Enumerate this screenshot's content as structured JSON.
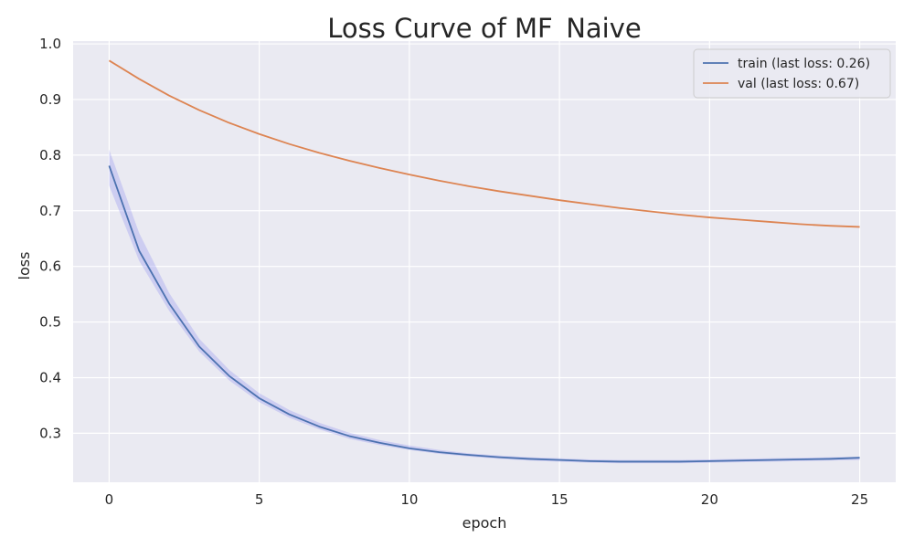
{
  "chart_data": {
    "type": "line",
    "title": "Loss Curve of MF_Naive",
    "xlabel": "epoch",
    "ylabel": "loss",
    "xlim": [
      -1.2,
      26.2
    ],
    "ylim": [
      0.212,
      1.005
    ],
    "xticks": [
      0,
      5,
      10,
      15,
      20,
      25
    ],
    "yticks": [
      0.3,
      0.4,
      0.5,
      0.6,
      0.7,
      0.8,
      0.9,
      1.0
    ],
    "ytick_labels": [
      "0.3",
      "0.4",
      "0.5",
      "0.6",
      "0.7",
      "0.8",
      "0.9",
      "1.0"
    ],
    "grid": true,
    "legend_position": "top-right",
    "background": "#eaeaf2",
    "x": [
      0,
      1,
      2,
      3,
      4,
      5,
      6,
      7,
      8,
      9,
      10,
      11,
      12,
      13,
      14,
      15,
      16,
      17,
      18,
      19,
      20,
      21,
      22,
      23,
      24,
      25
    ],
    "series": [
      {
        "name": "train (last loss: 0.26)",
        "color": "#4c72b0",
        "values": [
          0.781,
          0.628,
          0.533,
          0.456,
          0.403,
          0.363,
          0.334,
          0.312,
          0.295,
          0.283,
          0.273,
          0.266,
          0.261,
          0.257,
          0.254,
          0.252,
          0.25,
          0.249,
          0.249,
          0.249,
          0.25,
          0.251,
          0.252,
          0.253,
          0.254,
          0.256
        ],
        "band_lower": [
          0.745,
          0.61,
          0.52,
          0.447,
          0.395,
          0.356,
          0.328,
          0.307,
          0.29,
          0.279,
          0.27,
          0.263,
          0.258,
          0.254,
          0.251,
          0.249,
          0.247,
          0.246,
          0.246,
          0.246,
          0.247,
          0.248,
          0.249,
          0.25,
          0.251,
          0.252
        ],
        "band_upper": [
          0.81,
          0.66,
          0.552,
          0.47,
          0.414,
          0.372,
          0.342,
          0.319,
          0.301,
          0.288,
          0.278,
          0.27,
          0.264,
          0.26,
          0.257,
          0.255,
          0.253,
          0.252,
          0.252,
          0.252,
          0.253,
          0.254,
          0.255,
          0.256,
          0.257,
          0.258
        ],
        "band_color": "#8c8cf0"
      },
      {
        "name": "val (last loss: 0.67)",
        "color": "#dd8452",
        "values": [
          0.97,
          0.937,
          0.907,
          0.881,
          0.858,
          0.838,
          0.82,
          0.804,
          0.79,
          0.777,
          0.765,
          0.754,
          0.744,
          0.735,
          0.727,
          0.719,
          0.712,
          0.705,
          0.699,
          0.693,
          0.688,
          0.684,
          0.68,
          0.676,
          0.673,
          0.671
        ]
      }
    ]
  }
}
